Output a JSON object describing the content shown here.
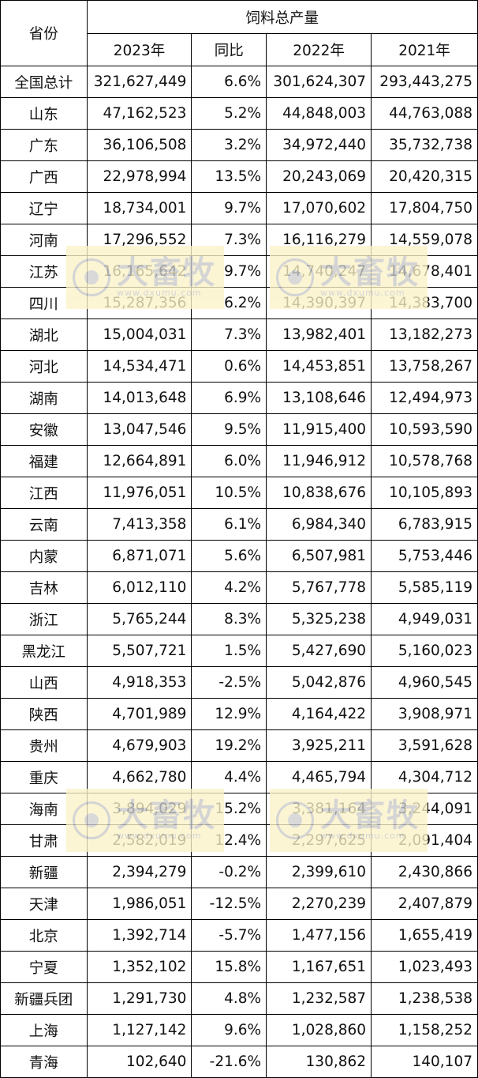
{
  "header": {
    "province": "省份",
    "group": "饲料总产量",
    "col_2023": "2023年",
    "col_yoy": "同比",
    "col_2022": "2022年",
    "col_2021": "2021年"
  },
  "rows": [
    {
      "province": "全国总计",
      "y2023": "321,627,449",
      "yoy": "6.6%",
      "y2022": "301,624,307",
      "y2021": "293,443,275"
    },
    {
      "province": "山东",
      "y2023": "47,162,523",
      "yoy": "5.2%",
      "y2022": "44,848,003",
      "y2021": "44,763,088"
    },
    {
      "province": "广东",
      "y2023": "36,106,508",
      "yoy": "3.2%",
      "y2022": "34,972,440",
      "y2021": "35,732,738"
    },
    {
      "province": "广西",
      "y2023": "22,978,994",
      "yoy": "13.5%",
      "y2022": "20,243,069",
      "y2021": "20,420,315"
    },
    {
      "province": "辽宁",
      "y2023": "18,734,001",
      "yoy": "9.7%",
      "y2022": "17,070,602",
      "y2021": "17,804,750"
    },
    {
      "province": "河南",
      "y2023": "17,296,552",
      "yoy": "7.3%",
      "y2022": "16,116,279",
      "y2021": "14,559,078"
    },
    {
      "province": "江苏",
      "y2023": "16,165,642",
      "yoy": "9.7%",
      "y2022": "14,740,247",
      "y2021": "14,678,401"
    },
    {
      "province": "四川",
      "y2023": "15,287,356",
      "yoy": "6.2%",
      "y2022": "14,390,397",
      "y2021": "14,383,700"
    },
    {
      "province": "湖北",
      "y2023": "15,004,031",
      "yoy": "7.3%",
      "y2022": "13,982,401",
      "y2021": "13,182,273"
    },
    {
      "province": "河北",
      "y2023": "14,534,471",
      "yoy": "0.6%",
      "y2022": "14,453,851",
      "y2021": "13,758,267"
    },
    {
      "province": "湖南",
      "y2023": "14,013,648",
      "yoy": "6.9%",
      "y2022": "13,108,646",
      "y2021": "12,494,973"
    },
    {
      "province": "安徽",
      "y2023": "13,047,546",
      "yoy": "9.5%",
      "y2022": "11,915,400",
      "y2021": "10,593,590"
    },
    {
      "province": "福建",
      "y2023": "12,664,891",
      "yoy": "6.0%",
      "y2022": "11,946,912",
      "y2021": "10,578,768"
    },
    {
      "province": "江西",
      "y2023": "11,976,051",
      "yoy": "10.5%",
      "y2022": "10,838,676",
      "y2021": "10,105,893"
    },
    {
      "province": "云南",
      "y2023": "7,413,358",
      "yoy": "6.1%",
      "y2022": "6,984,340",
      "y2021": "6,783,915"
    },
    {
      "province": "内蒙",
      "y2023": "6,871,071",
      "yoy": "5.6%",
      "y2022": "6,507,981",
      "y2021": "5,753,446"
    },
    {
      "province": "吉林",
      "y2023": "6,012,110",
      "yoy": "4.2%",
      "y2022": "5,767,778",
      "y2021": "5,585,119"
    },
    {
      "province": "浙江",
      "y2023": "5,765,244",
      "yoy": "8.3%",
      "y2022": "5,325,238",
      "y2021": "4,949,031"
    },
    {
      "province": "黑龙江",
      "y2023": "5,507,721",
      "yoy": "1.5%",
      "y2022": "5,427,690",
      "y2021": "5,160,023"
    },
    {
      "province": "山西",
      "y2023": "4,918,353",
      "yoy": "-2.5%",
      "y2022": "5,042,876",
      "y2021": "4,960,545"
    },
    {
      "province": "陕西",
      "y2023": "4,701,989",
      "yoy": "12.9%",
      "y2022": "4,164,422",
      "y2021": "3,908,971"
    },
    {
      "province": "贵州",
      "y2023": "4,679,903",
      "yoy": "19.2%",
      "y2022": "3,925,211",
      "y2021": "3,591,628"
    },
    {
      "province": "重庆",
      "y2023": "4,662,780",
      "yoy": "4.4%",
      "y2022": "4,465,794",
      "y2021": "4,304,712"
    },
    {
      "province": "海南",
      "y2023": "3,894,029",
      "yoy": "15.2%",
      "y2022": "3,381,164",
      "y2021": "3,244,091"
    },
    {
      "province": "甘肃",
      "y2023": "2,582,019",
      "yoy": "12.4%",
      "y2022": "2,297,625",
      "y2021": "2,091,404"
    },
    {
      "province": "新疆",
      "y2023": "2,394,279",
      "yoy": "-0.2%",
      "y2022": "2,399,610",
      "y2021": "2,430,866"
    },
    {
      "province": "天津",
      "y2023": "1,986,051",
      "yoy": "-12.5%",
      "y2022": "2,270,239",
      "y2021": "2,407,879"
    },
    {
      "province": "北京",
      "y2023": "1,392,714",
      "yoy": "-5.7%",
      "y2022": "1,477,156",
      "y2021": "1,655,419"
    },
    {
      "province": "宁夏",
      "y2023": "1,352,102",
      "yoy": "15.8%",
      "y2022": "1,167,651",
      "y2021": "1,023,493"
    },
    {
      "province": "新疆兵团",
      "y2023": "1,291,730",
      "yoy": "4.8%",
      "y2022": "1,232,587",
      "y2021": "1,238,538"
    },
    {
      "province": "上海",
      "y2023": "1,127,142",
      "yoy": "9.6%",
      "y2022": "1,028,860",
      "y2021": "1,158,252"
    },
    {
      "province": "青海",
      "y2023": "102,640",
      "yoy": "-21.6%",
      "y2022": "130,862",
      "y2021": "140,107"
    }
  ],
  "watermark": {
    "brand": "大畜牧",
    "url": "www.dxumu.com",
    "icon": "dxumu-logo-icon"
  }
}
